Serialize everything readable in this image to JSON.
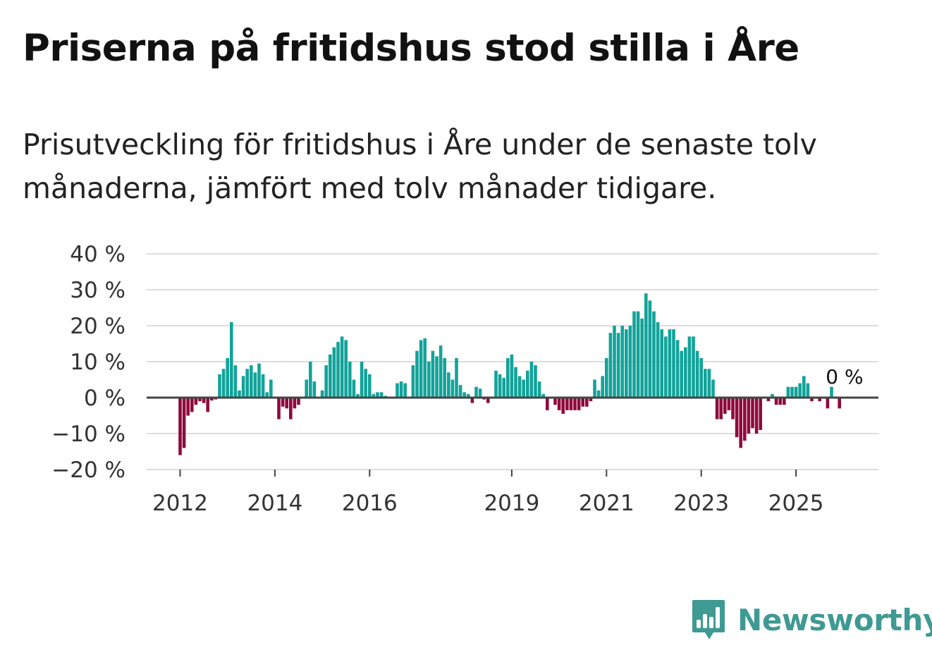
{
  "title": "Priserna på fritidshus stod stilla i Åre",
  "subtitle": "Prisutveckling för fritidshus i Åre under de senaste tolv månaderna, jämfört med tolv månader tidigare.",
  "brand": {
    "name": "Newsworthy",
    "color": "#3e9a92",
    "icon": "bar-chart-speech-bubble-icon"
  },
  "colors": {
    "positive": "#12a39a",
    "negative": "#8f0a3c",
    "grid": "#dddddd",
    "zero_line": "#444444"
  },
  "chart_data": {
    "type": "bar",
    "title": "Priserna på fritidshus stod stilla i Åre",
    "xlabel": "",
    "ylabel": "",
    "unit": "%",
    "ylim": [
      -20,
      40
    ],
    "yticks": [
      40,
      30,
      20,
      10,
      0,
      -10,
      -20
    ],
    "ytick_labels": [
      "40 %",
      "30 %",
      "20 %",
      "10 %",
      "0 %",
      "−10 %",
      "−20 %"
    ],
    "xticks": [
      {
        "year": 2012,
        "index": 0,
        "label": "2012"
      },
      {
        "year": 2014,
        "index": 24,
        "label": "2014"
      },
      {
        "year": 2016,
        "index": 48,
        "label": "2016"
      },
      {
        "year": 2019,
        "index": 84,
        "label": "2019"
      },
      {
        "year": 2021,
        "index": 108,
        "label": "2021"
      },
      {
        "year": 2023,
        "index": 132,
        "label": "2023"
      },
      {
        "year": 2025,
        "index": 156,
        "label": "2025"
      }
    ],
    "start": "2012-01",
    "frequency": "monthly",
    "values": [
      -16,
      -14,
      -5,
      -4,
      -2,
      -1,
      -1.5,
      -4,
      -0.8,
      -0.5,
      6.5,
      8,
      11,
      21,
      9,
      2,
      6,
      8,
      9,
      7,
      9.5,
      6.5,
      1.5,
      5,
      0,
      -6,
      -2.5,
      -3,
      -6,
      -3,
      -2,
      0,
      5,
      10,
      4.5,
      0,
      2,
      9,
      12,
      14,
      15.5,
      17,
      16,
      10,
      5,
      1,
      10,
      8,
      6.5,
      1,
      1.5,
      1.5,
      0.5,
      0,
      0,
      4,
      4.5,
      4,
      0,
      9,
      13,
      16,
      16.5,
      10,
      13,
      11.5,
      14.5,
      11,
      7,
      5,
      11,
      3.5,
      1.5,
      1,
      -1.5,
      3,
      2.5,
      -0.5,
      -1.5,
      0,
      7.5,
      6.5,
      5.5,
      11,
      12,
      8.5,
      6,
      5,
      7.5,
      10,
      9,
      4.5,
      1,
      -3.5,
      0,
      -2,
      -3.5,
      -4.5,
      -3.5,
      -3.5,
      -3.5,
      -3.5,
      -2.5,
      -2.5,
      -1,
      5,
      2,
      6,
      11,
      18,
      20,
      18,
      20,
      19,
      20,
      24,
      24,
      22,
      29,
      27,
      24,
      21,
      19,
      17,
      19,
      19,
      16,
      13,
      14,
      17,
      17,
      13,
      11,
      8,
      8,
      5,
      -6,
      -6,
      -4.5,
      -3.5,
      -6,
      -11,
      -14,
      -12,
      -10,
      -8.5,
      -10,
      -9,
      0,
      -1,
      1,
      -2,
      -2,
      -2,
      3,
      3,
      3,
      4,
      6,
      4,
      -1,
      0,
      -1,
      0,
      -3,
      3,
      0,
      -3,
      0,
      0
    ],
    "last_value_label": "0 %"
  }
}
